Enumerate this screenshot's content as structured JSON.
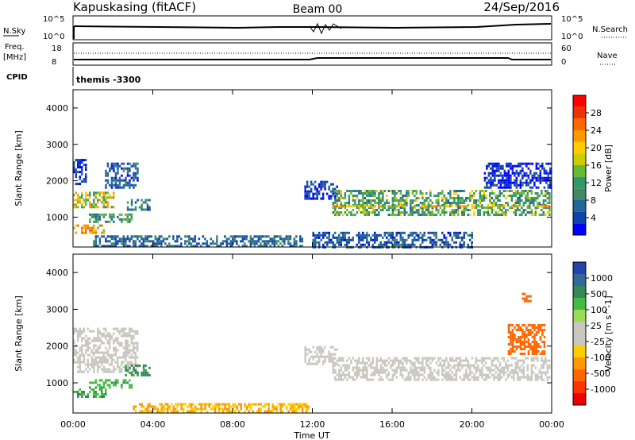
{
  "header": {
    "station": "Kapuskasing (fitACF)",
    "beam": "Beam 00",
    "date": "24/Sep/2016"
  },
  "aux_panels": {
    "nsky_label": "N.Sky",
    "nsky_ticks": [
      "10^5",
      "10^0"
    ],
    "nsearch_label": "N.Search",
    "nsearch_ticks": [
      "10^5",
      "10^0"
    ],
    "freq_label": "Freq.",
    "freq_unit": "[MHz]",
    "freq_ticks": [
      "18",
      "8"
    ],
    "nave_label": "Nave",
    "nave_ticks": [
      "60",
      "0"
    ],
    "cpid_label": "CPID",
    "cpid_value": "themis -3300"
  },
  "colorbars": {
    "power": {
      "label": "Power [dB]",
      "ticks": [
        "28",
        "24",
        "20",
        "16",
        "12",
        "8",
        "4"
      ],
      "colors": [
        "#ff0000",
        "#ee3300",
        "#ff6600",
        "#ff9900",
        "#ffcc00",
        "#cccc00",
        "#66bb33",
        "#339966",
        "#448866",
        "#226699",
        "#1144aa",
        "#0000ff"
      ]
    },
    "velocity": {
      "label": "Velocity [m s^-1]",
      "ticks": [
        "1000",
        "500",
        "100",
        "25",
        "-25",
        "-100",
        "-500",
        "-1000"
      ],
      "colors": [
        "#2244aa",
        "#336699",
        "#338855",
        "#44bb44",
        "#99dd55",
        "#c8c8c0",
        "#c8c8c0",
        "#ffcc00",
        "#ff9900",
        "#ff6600",
        "#ff3300",
        "#ee0000"
      ]
    }
  },
  "chart_data": [
    {
      "type": "heatmap",
      "title": "",
      "ylabel": "Slant Range [km]",
      "xlabel": "Time UT",
      "quantity": "Power [dB]",
      "xlim": [
        0,
        24
      ],
      "ylim": [
        180,
        4500
      ],
      "y_ticks": [
        "1000",
        "2000",
        "3000",
        "4000"
      ],
      "x_ticks": [
        "00:00",
        "04:00",
        "08:00",
        "12:00",
        "16:00",
        "20:00",
        "00:00"
      ],
      "regions": [
        {
          "t0": 0.0,
          "t1": 2.0,
          "r0": 1300,
          "r1": 1700,
          "value": 17
        },
        {
          "t0": 0.0,
          "t1": 1.5,
          "r0": 600,
          "r1": 800,
          "value": 20
        },
        {
          "t0": 0.8,
          "t1": 2.9,
          "r0": 850,
          "r1": 1100,
          "value": 13
        },
        {
          "t0": 1.6,
          "t1": 3.2,
          "r0": 1800,
          "r1": 2500,
          "value": 8
        },
        {
          "t0": 2.6,
          "t1": 3.8,
          "r0": 1200,
          "r1": 1500,
          "value": 11
        },
        {
          "t0": 0.0,
          "t1": 0.6,
          "r0": 1900,
          "r1": 2600,
          "value": 6
        },
        {
          "t0": 1.0,
          "t1": 11.5,
          "r0": 200,
          "r1": 500,
          "value": 9
        },
        {
          "t0": 11.6,
          "t1": 13.2,
          "r0": 1500,
          "r1": 2000,
          "value": 6
        },
        {
          "t0": 13.0,
          "t1": 23.9,
          "r0": 1050,
          "r1": 1750,
          "value": 14
        },
        {
          "t0": 13.0,
          "t1": 23.9,
          "r0": 1270,
          "r1": 1330,
          "value": 20
        },
        {
          "t0": 20.6,
          "t1": 23.9,
          "r0": 1800,
          "r1": 2500,
          "value": 5
        },
        {
          "t0": 12.0,
          "t1": 20.0,
          "r0": 200,
          "r1": 600,
          "value": 8
        }
      ]
    },
    {
      "type": "heatmap",
      "title": "",
      "ylabel": "Slant Range [km]",
      "xlabel": "Time UT",
      "quantity": "Velocity [m s^-1]",
      "xlim": [
        0,
        24
      ],
      "ylim": [
        180,
        4500
      ],
      "y_ticks": [
        "1000",
        "2000",
        "3000",
        "4000"
      ],
      "x_ticks": [
        "00:00",
        "04:00",
        "08:00",
        "12:00",
        "16:00",
        "20:00",
        "00:00"
      ],
      "regions": [
        {
          "t0": 0.0,
          "t1": 3.2,
          "r0": 1300,
          "r1": 2500,
          "value": 0
        },
        {
          "t0": 0.0,
          "t1": 1.6,
          "r0": 600,
          "r1": 850,
          "value": 60
        },
        {
          "t0": 0.8,
          "t1": 2.9,
          "r0": 850,
          "r1": 1100,
          "value": 50
        },
        {
          "t0": 2.6,
          "t1": 3.8,
          "r0": 1200,
          "r1": 1500,
          "value": 70
        },
        {
          "t0": 3.0,
          "t1": 11.8,
          "r0": 200,
          "r1": 450,
          "value": -60
        },
        {
          "t0": 11.6,
          "t1": 13.2,
          "r0": 1500,
          "r1": 2000,
          "value": 0
        },
        {
          "t0": 13.0,
          "t1": 23.9,
          "r0": 1100,
          "r1": 1700,
          "value": 0
        },
        {
          "t0": 21.8,
          "t1": 23.6,
          "r0": 1800,
          "r1": 2600,
          "value": -300
        },
        {
          "t0": 22.5,
          "t1": 22.9,
          "r0": 3200,
          "r1": 3450,
          "value": -300
        }
      ]
    }
  ]
}
